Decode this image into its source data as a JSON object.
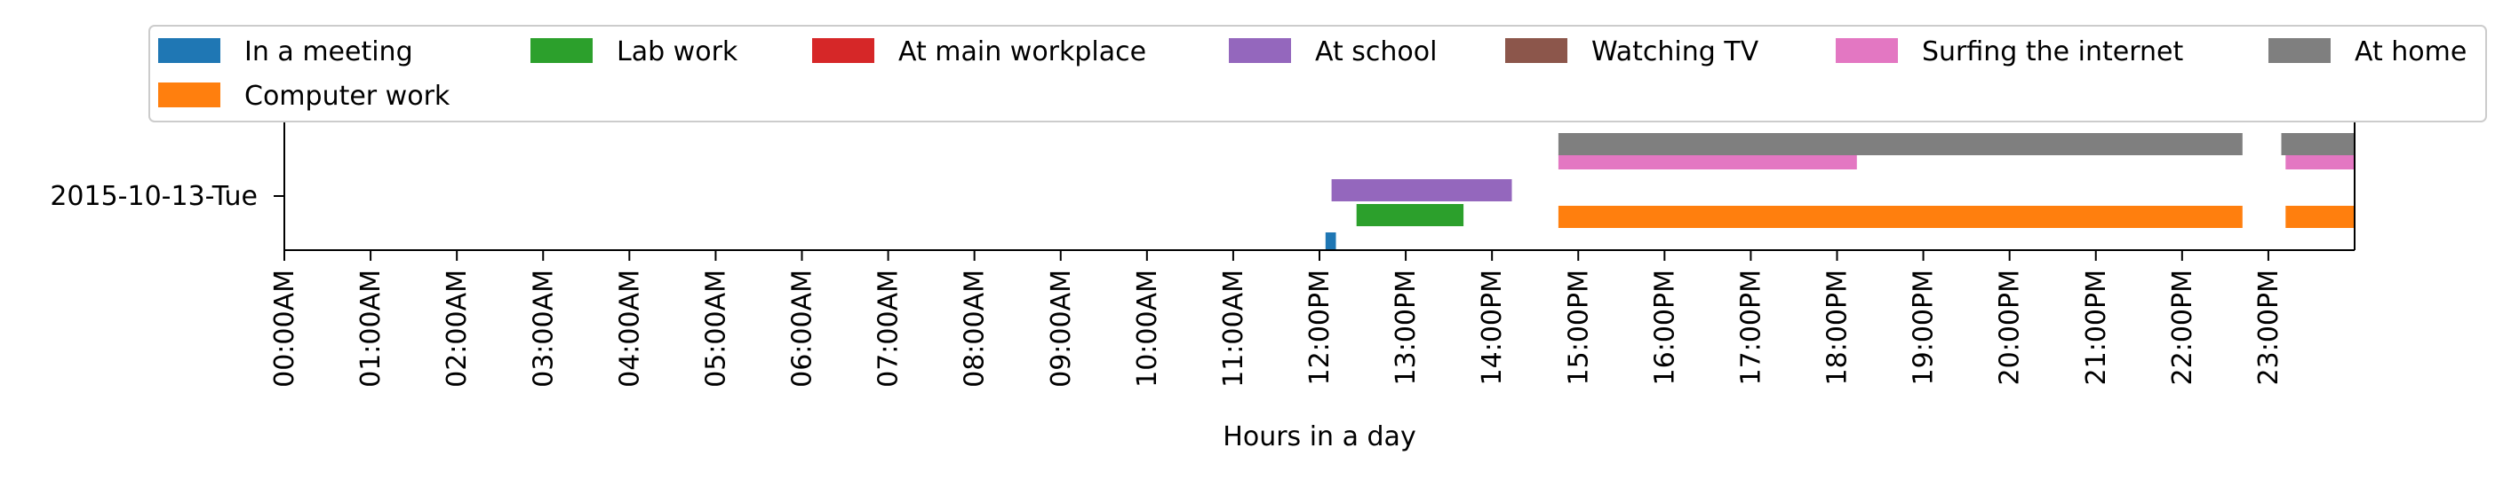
{
  "chart_data": {
    "type": "bar",
    "orientation": "horizontal",
    "xlabel": "Hours in a day",
    "ylabel": "",
    "xlim": [
      0,
      24
    ],
    "grid": false,
    "legend_position": "top",
    "y_categories": [
      "2015-10-13-Tue"
    ],
    "x_ticks": [
      {
        "value": 0,
        "label": "00:00AM"
      },
      {
        "value": 1,
        "label": "01:00AM"
      },
      {
        "value": 2,
        "label": "02:00AM"
      },
      {
        "value": 3,
        "label": "03:00AM"
      },
      {
        "value": 4,
        "label": "04:00AM"
      },
      {
        "value": 5,
        "label": "05:00AM"
      },
      {
        "value": 6,
        "label": "06:00AM"
      },
      {
        "value": 7,
        "label": "07:00AM"
      },
      {
        "value": 8,
        "label": "08:00AM"
      },
      {
        "value": 9,
        "label": "09:00AM"
      },
      {
        "value": 10,
        "label": "10:00AM"
      },
      {
        "value": 11,
        "label": "11:00AM"
      },
      {
        "value": 12,
        "label": "12:00PM"
      },
      {
        "value": 13,
        "label": "13:00PM"
      },
      {
        "value": 14,
        "label": "14:00PM"
      },
      {
        "value": 15,
        "label": "15:00PM"
      },
      {
        "value": 16,
        "label": "16:00PM"
      },
      {
        "value": 17,
        "label": "17:00PM"
      },
      {
        "value": 18,
        "label": "18:00PM"
      },
      {
        "value": 19,
        "label": "19:00PM"
      },
      {
        "value": 20,
        "label": "20:00PM"
      },
      {
        "value": 21,
        "label": "21:00PM"
      },
      {
        "value": 22,
        "label": "22:00PM"
      },
      {
        "value": 23,
        "label": "23:00PM"
      }
    ],
    "series": [
      {
        "name": "In a meeting",
        "color": "#1f77b4",
        "lane": 0,
        "intervals": [
          [
            12.07,
            12.19
          ]
        ]
      },
      {
        "name": "Computer work",
        "color": "#ff7f0e",
        "lane": 1,
        "intervals": [
          [
            14.77,
            22.7
          ],
          [
            23.2,
            24.0
          ]
        ]
      },
      {
        "name": "Lab work",
        "color": "#2ca02c",
        "lane": 2,
        "intervals": [
          [
            12.43,
            13.67
          ]
        ]
      },
      {
        "name": "At main workplace",
        "color": "#d62728",
        "lane": 3,
        "intervals": []
      },
      {
        "name": "At school",
        "color": "#9467bd",
        "lane": 4,
        "intervals": [
          [
            12.14,
            14.23
          ]
        ]
      },
      {
        "name": "Watching TV",
        "color": "#8c564b",
        "lane": 5,
        "intervals": []
      },
      {
        "name": "Surfing the internet",
        "color": "#e377c2",
        "lane": 6,
        "intervals": [
          [
            14.77,
            18.23
          ],
          [
            23.2,
            24.0
          ]
        ]
      },
      {
        "name": "At home",
        "color": "#7f7f7f",
        "lane": 7,
        "intervals": [
          [
            14.77,
            22.7
          ],
          [
            23.15,
            24.0
          ]
        ]
      }
    ]
  }
}
